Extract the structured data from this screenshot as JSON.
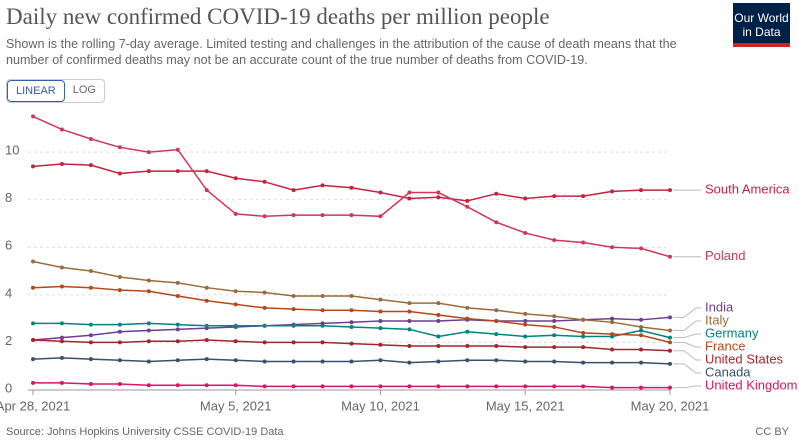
{
  "chart_data": {
    "type": "line",
    "title": "Daily new confirmed COVID-19 deaths per million people",
    "subtitle": "Shown is the rolling 7-day average. Limited testing and challenges in the attribution of the cause of death means that the number of confirmed deaths may not be an accurate count of the true number of deaths from COVID-19.",
    "logo": "Our World in Data",
    "buttons": [
      "LINEAR",
      "LOG"
    ],
    "log_scale": false,
    "grid": true,
    "source": "Source: Johns Hopkins University CSSE COVID-19 Data",
    "license": "CC BY",
    "x": [
      "2021-04-28",
      "2021-04-29",
      "2021-04-30",
      "2021-05-01",
      "2021-05-02",
      "2021-05-03",
      "2021-05-04",
      "2021-05-05",
      "2021-05-06",
      "2021-05-07",
      "2021-05-08",
      "2021-05-09",
      "2021-05-10",
      "2021-05-11",
      "2021-05-12",
      "2021-05-13",
      "2021-05-14",
      "2021-05-15",
      "2021-05-16",
      "2021-05-17",
      "2021-05-18",
      "2021-05-19",
      "2021-05-20"
    ],
    "xlim": [
      "2021-04-28",
      "2021-05-20"
    ],
    "xticks": [
      {
        "value": "2021-04-28",
        "label": "Apr 28, 2021"
      },
      {
        "value": "2021-05-05",
        "label": "May 5, 2021"
      },
      {
        "value": "2021-05-10",
        "label": "May 10, 2021"
      },
      {
        "value": "2021-05-15",
        "label": "May 15, 2021"
      },
      {
        "value": "2021-05-20",
        "label": "May 20, 2021"
      }
    ],
    "ylim": [
      0,
      11.6
    ],
    "yticks": [
      0,
      2,
      4,
      6,
      8,
      10
    ],
    "series": [
      {
        "name": "South America",
        "color": "#c6223f",
        "values": [
          9.4,
          9.5,
          9.45,
          9.1,
          9.2,
          9.2,
          9.2,
          8.9,
          8.75,
          8.4,
          8.6,
          8.5,
          8.3,
          8.05,
          8.1,
          7.95,
          8.25,
          8.05,
          8.15,
          8.15,
          8.35,
          8.4,
          8.4
        ]
      },
      {
        "name": "Poland",
        "color": "#d1365a",
        "values": [
          11.5,
          10.95,
          10.55,
          10.2,
          10.0,
          10.1,
          8.4,
          7.4,
          7.3,
          7.35,
          7.35,
          7.35,
          7.3,
          8.3,
          8.3,
          7.7,
          7.05,
          6.6,
          6.3,
          6.2,
          6.0,
          5.95,
          5.6
        ]
      },
      {
        "name": "India",
        "color": "#6d3e91",
        "values": [
          2.1,
          2.2,
          2.3,
          2.45,
          2.5,
          2.55,
          2.6,
          2.65,
          2.7,
          2.75,
          2.8,
          2.85,
          2.9,
          2.9,
          2.9,
          2.95,
          2.9,
          2.9,
          2.9,
          2.95,
          3.0,
          2.95,
          3.05
        ]
      },
      {
        "name": "Italy",
        "color": "#996d39",
        "values": [
          5.4,
          5.15,
          5.0,
          4.75,
          4.6,
          4.5,
          4.3,
          4.15,
          4.1,
          3.95,
          3.95,
          3.95,
          3.8,
          3.65,
          3.65,
          3.45,
          3.35,
          3.2,
          3.1,
          2.95,
          2.85,
          2.65,
          2.5
        ]
      },
      {
        "name": "Germany",
        "color": "#00847e",
        "values": [
          2.8,
          2.8,
          2.75,
          2.75,
          2.8,
          2.75,
          2.7,
          2.7,
          2.7,
          2.7,
          2.7,
          2.65,
          2.6,
          2.55,
          2.25,
          2.45,
          2.35,
          2.25,
          2.3,
          2.25,
          2.25,
          2.5,
          2.2
        ]
      },
      {
        "name": "France",
        "color": "#b5481b",
        "values": [
          4.3,
          4.35,
          4.3,
          4.2,
          4.15,
          3.95,
          3.75,
          3.6,
          3.45,
          3.4,
          3.35,
          3.35,
          3.3,
          3.3,
          3.15,
          3.0,
          2.9,
          2.75,
          2.65,
          2.4,
          2.35,
          2.3,
          2.0
        ]
      },
      {
        "name": "United States",
        "color": "#a2262f",
        "values": [
          2.1,
          2.05,
          2.0,
          2.0,
          2.05,
          2.05,
          2.1,
          2.05,
          2.0,
          2.0,
          2.0,
          1.95,
          1.9,
          1.85,
          1.85,
          1.85,
          1.85,
          1.8,
          1.8,
          1.8,
          1.7,
          1.7,
          1.65
        ]
      },
      {
        "name": "Canada",
        "color": "#38506b",
        "values": [
          1.3,
          1.35,
          1.3,
          1.25,
          1.2,
          1.25,
          1.3,
          1.25,
          1.2,
          1.2,
          1.2,
          1.2,
          1.25,
          1.15,
          1.2,
          1.25,
          1.25,
          1.2,
          1.2,
          1.15,
          1.15,
          1.15,
          1.1
        ]
      },
      {
        "name": "United Kingdom",
        "color": "#d6156b",
        "values": [
          0.3,
          0.3,
          0.25,
          0.25,
          0.2,
          0.2,
          0.2,
          0.2,
          0.15,
          0.15,
          0.15,
          0.15,
          0.15,
          0.15,
          0.15,
          0.15,
          0.15,
          0.15,
          0.15,
          0.15,
          0.1,
          0.1,
          0.1
        ]
      }
    ]
  }
}
